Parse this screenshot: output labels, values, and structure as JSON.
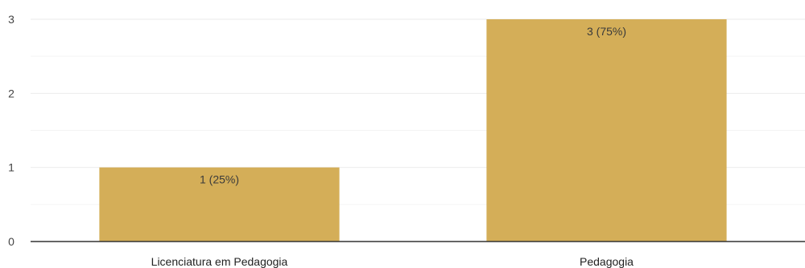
{
  "chart_data": {
    "type": "bar",
    "categories": [
      "Licenciatura em Pedagogia",
      "Pedagogia"
    ],
    "values": [
      1,
      3
    ],
    "data_labels": [
      "1 (25%)",
      "3 (75%)"
    ],
    "yticks": [
      0,
      1,
      2,
      3
    ],
    "ylim": [
      0,
      3
    ],
    "grid": true,
    "bar_color": "#d4ae58",
    "grid_color": "#ebebeb",
    "axis_color": "#333333"
  }
}
